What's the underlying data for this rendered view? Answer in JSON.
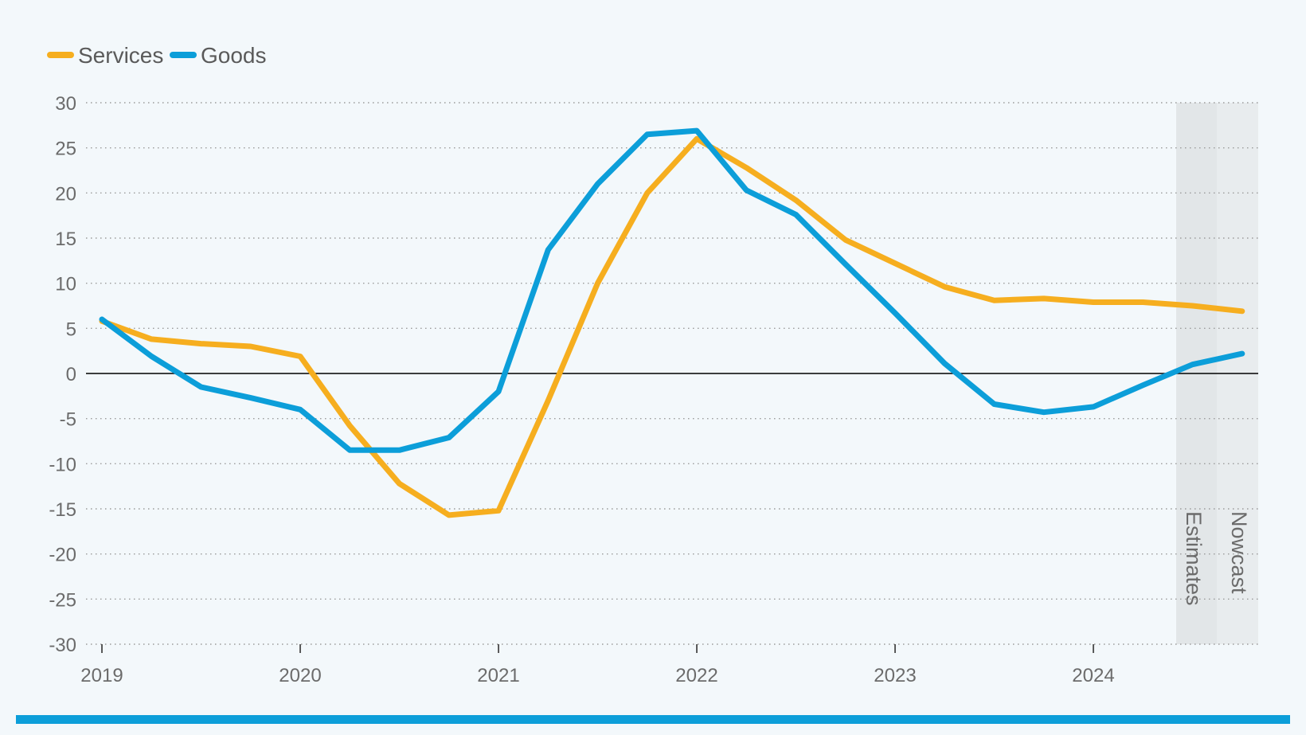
{
  "chart_data": {
    "type": "line",
    "title": "",
    "xlabel": "",
    "ylabel": "",
    "x": [
      "2019-Q1",
      "2019-Q2",
      "2019-Q3",
      "2019-Q4",
      "2020-Q1",
      "2020-Q2",
      "2020-Q3",
      "2020-Q4",
      "2021-Q1",
      "2021-Q2",
      "2021-Q3",
      "2021-Q4",
      "2022-Q1",
      "2022-Q2",
      "2022-Q3",
      "2022-Q4",
      "2023-Q1",
      "2023-Q2",
      "2023-Q3",
      "2023-Q4",
      "2024-Q1",
      "2024-Q2",
      "2024-Q3",
      "2024-Q4"
    ],
    "x_tick_labels": [
      "2019",
      "2020",
      "2021",
      "2022",
      "2023",
      "2024"
    ],
    "y_ticks": [
      "30",
      "25",
      "20",
      "15",
      "10",
      "5",
      "0",
      "-5",
      "-10",
      "-15",
      "-20",
      "-25",
      "-30"
    ],
    "ylim": [
      -30,
      30
    ],
    "grid": "horizontal-dotted",
    "legend_position": "top-left",
    "series": [
      {
        "name": "Services",
        "color": "#f6ae1f",
        "values": [
          5.8,
          3.8,
          3.3,
          3.0,
          1.9,
          -5.8,
          -12.2,
          -15.7,
          -15.2,
          -3.0,
          10.0,
          20.0,
          26.0,
          22.8,
          19.2,
          14.8,
          12.2,
          9.6,
          8.1,
          8.3,
          7.9,
          7.9,
          7.5,
          6.9
        ]
      },
      {
        "name": "Goods",
        "color": "#0c9ed9",
        "values": [
          6.0,
          1.9,
          -1.5,
          -2.7,
          -4.0,
          -8.5,
          -8.5,
          -7.1,
          -2.0,
          13.7,
          21.0,
          26.5,
          26.9,
          20.3,
          17.6,
          12.1,
          6.7,
          1.1,
          -3.4,
          -4.3,
          -3.7,
          -1.3,
          1.0,
          2.2
        ]
      }
    ],
    "annotations": [
      {
        "label": "Estimates",
        "x_start": "2024-Q3",
        "x_end": "2024-Q3"
      },
      {
        "label": "Nowcast",
        "x_start": "2024-Q4",
        "x_end": "2024-Q4"
      }
    ],
    "colors": {
      "background": "#f3f8fb",
      "grid": "#9a9a9a",
      "zero_line": "#000000",
      "estimates_band": "#e2e6e8",
      "nowcast_band": "#e8ecee",
      "bottom_bar": "#0c9ed9"
    }
  }
}
